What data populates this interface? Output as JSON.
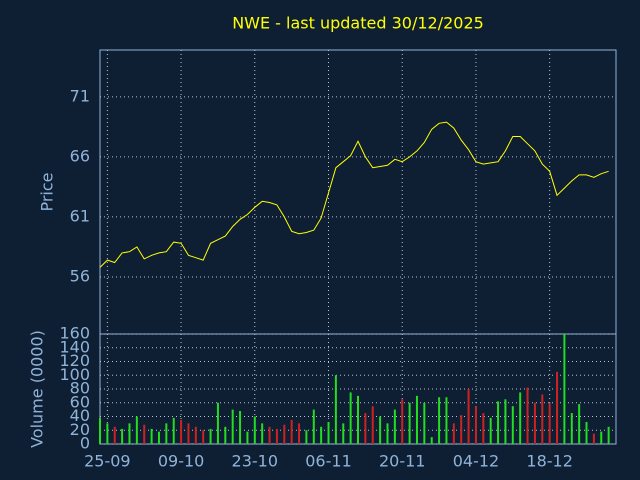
{
  "chart_data": {
    "type": "stock",
    "title": "NWE - last updated 30/12/2025",
    "title_color": "#ffff00",
    "categories": [
      null,
      "25-09",
      null,
      null,
      null,
      null,
      null,
      null,
      null,
      null,
      null,
      "09-10",
      null,
      null,
      null,
      null,
      null,
      null,
      null,
      null,
      null,
      "23-10",
      null,
      null,
      null,
      null,
      null,
      null,
      null,
      null,
      null,
      "06-11",
      null,
      null,
      null,
      null,
      null,
      null,
      null,
      null,
      null,
      "20-11",
      null,
      null,
      null,
      null,
      null,
      null,
      null,
      null,
      null,
      "04-12",
      null,
      null,
      null,
      null,
      null,
      null,
      null,
      null,
      null,
      "18-12",
      null,
      null,
      null,
      null,
      null,
      null,
      null,
      null
    ],
    "grid": true,
    "price": {
      "ylabel": "Price",
      "color": "#ffff00",
      "ylim": [
        51.25,
        74.9
      ],
      "yticks": [
        56,
        61,
        66,
        71
      ],
      "values": [
        56.8,
        57.4,
        57.2,
        58.0,
        58.1,
        58.5,
        57.5,
        57.8,
        58.0,
        58.1,
        58.9,
        58.8,
        57.8,
        57.6,
        57.4,
        58.8,
        59.1,
        59.4,
        60.2,
        60.8,
        61.2,
        61.8,
        62.3,
        62.2,
        62.0,
        61.0,
        59.8,
        59.6,
        59.7,
        59.9,
        60.9,
        63.0,
        65.1,
        65.6,
        66.1,
        67.3,
        66.0,
        65.1,
        65.2,
        65.3,
        65.8,
        65.6,
        66.0,
        66.5,
        67.2,
        68.3,
        68.8,
        68.9,
        68.4,
        67.4,
        66.6,
        65.6,
        65.4,
        65.5,
        65.6,
        66.5,
        67.7,
        67.7,
        67.1,
        66.5,
        65.4,
        64.8,
        62.8,
        63.4,
        64.0,
        64.5,
        64.5,
        64.3,
        64.6,
        64.8
      ]
    },
    "volume": {
      "ylabel": "Volume (0000)",
      "up_color": "#22dd22",
      "down_color": "#cc2222",
      "ylim": [
        0,
        160
      ],
      "yticks": [
        0,
        20,
        40,
        60,
        80,
        100,
        120,
        140,
        160
      ],
      "values": [
        38,
        30,
        25,
        22,
        30,
        40,
        28,
        22,
        18,
        30,
        38,
        35,
        30,
        25,
        20,
        22,
        60,
        25,
        50,
        48,
        18,
        40,
        30,
        25,
        22,
        28,
        35,
        30,
        20,
        50,
        25,
        32,
        100,
        30,
        75,
        70,
        45,
        55,
        40,
        30,
        50,
        65,
        60,
        70,
        60,
        10,
        68,
        68,
        30,
        42,
        80,
        55,
        45,
        38,
        62,
        65,
        55,
        75,
        82,
        60,
        72,
        60,
        105,
        160,
        45,
        58,
        32,
        15,
        18,
        25
      ]
    }
  }
}
